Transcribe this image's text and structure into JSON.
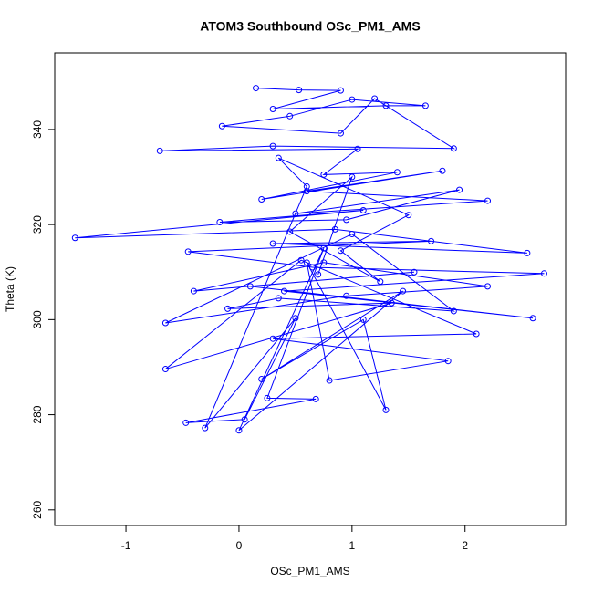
{
  "chart_data": {
    "type": "line",
    "title": "ATOM3 Southbound OSc_PM1_AMS",
    "x_label": "OSc_PM1_AMS",
    "y_label": "Theta (K)",
    "xlim": [
      -1.63,
      2.89
    ],
    "ylim": [
      256.7,
      356.1
    ],
    "xticks": [
      -1,
      0,
      1,
      2
    ],
    "yticks": [
      260,
      280,
      300,
      320,
      340
    ],
    "grid": false,
    "series": [
      {
        "color": "#0000ff",
        "x": [
          0.15,
          0.53,
          0.9,
          0.3,
          1.3,
          1.65,
          1.0,
          0.45,
          -0.15,
          0.9,
          1.2,
          1.9,
          0.3,
          -0.7,
          1.05,
          0.75,
          1.4,
          0.2,
          1.8,
          0.6,
          2.2,
          0.5,
          1.95,
          0.95,
          -0.17,
          1.1,
          -1.45,
          0.85,
          2.55,
          0.3,
          1.7,
          -0.45,
          0.65,
          2.7,
          0.4,
          2.6,
          0.1,
          1.55,
          -0.4,
          0.75,
          2.2,
          0.95,
          -0.65,
          1.0,
          1.9,
          0.35,
          -0.1,
          1.35,
          -0.65,
          0.55,
          2.1,
          0.3,
          1.85,
          0.8,
          0.6,
          1.3,
          1.1,
          0.2,
          1.45,
          0.0,
          0.75,
          0.25,
          0.68,
          -0.47,
          0.05,
          0.5,
          -0.3,
          0.6,
          0.35,
          1.5,
          0.9,
          1.25,
          0.45,
          1.0,
          0.7
        ],
        "values": [
          348.7,
          348.3,
          348.2,
          344.3,
          345.0,
          345.0,
          346.3,
          342.8,
          340.7,
          339.2,
          346.5,
          336.0,
          336.5,
          335.5,
          335.9,
          330.5,
          331.0,
          325.3,
          331.3,
          327.0,
          325.0,
          322.3,
          327.3,
          321.0,
          320.5,
          323.0,
          317.2,
          319.0,
          314.0,
          316.0,
          316.5,
          314.3,
          311.0,
          309.7,
          306.0,
          300.3,
          307.0,
          310.0,
          306.0,
          312.0,
          307.0,
          305.0,
          299.3,
          318.0,
          301.8,
          304.5,
          302.3,
          303.5,
          289.6,
          312.5,
          297.0,
          296.0,
          291.3,
          287.2,
          312.0,
          281.0,
          300.0,
          287.5,
          306.0,
          276.7,
          315.0,
          283.5,
          283.3,
          278.3,
          279.0,
          300.3,
          277.2,
          328.0,
          334.0,
          322.0,
          314.5,
          308.0,
          318.5,
          330.0,
          309.5
        ]
      }
    ]
  }
}
